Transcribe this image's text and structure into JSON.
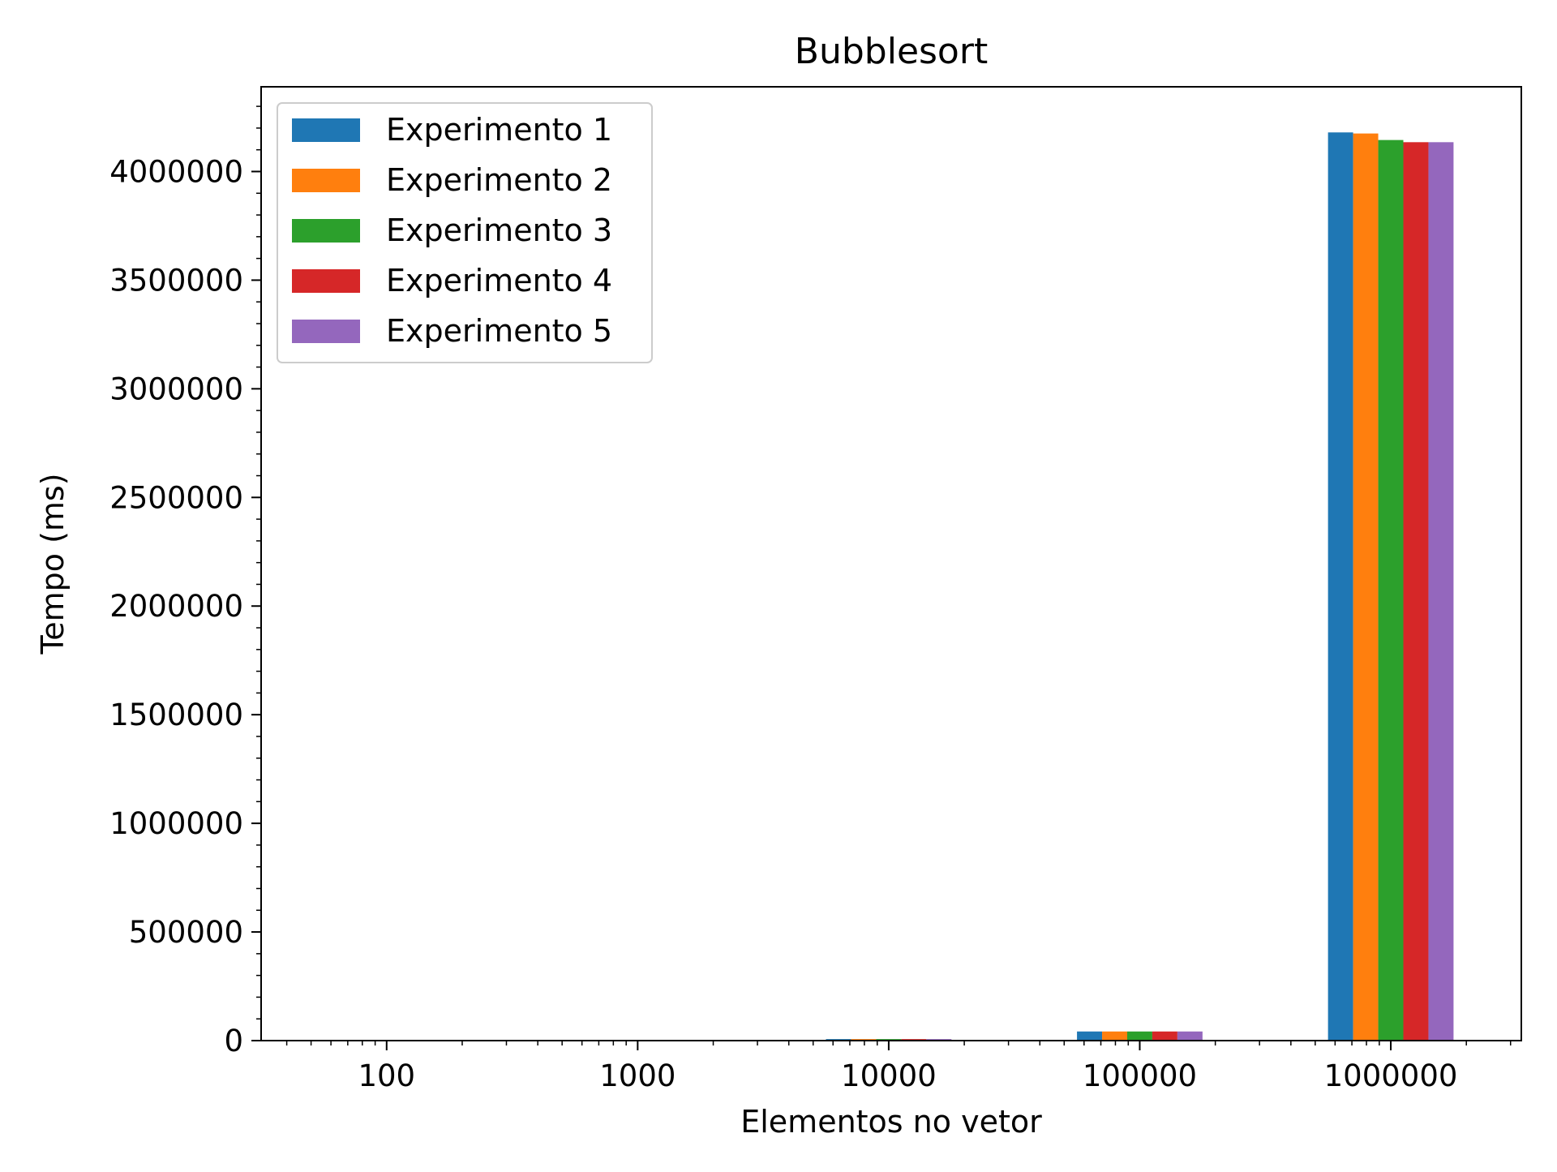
{
  "chart_data": {
    "type": "bar",
    "title": "Bubblesort",
    "xlabel": "Elementos no vetor",
    "ylabel": "Tempo (ms)",
    "x_scale": "log",
    "categories": [
      "100",
      "1000",
      "10000",
      "100000",
      "1000000"
    ],
    "x": [
      100,
      1000,
      10000,
      100000,
      1000000
    ],
    "ylim": [
      0,
      4390000
    ],
    "yticks": [
      0,
      500000,
      1000000,
      1500000,
      2000000,
      2500000,
      3000000,
      3500000,
      4000000
    ],
    "ytick_labels": [
      "0",
      "500000",
      "1000000",
      "1500000",
      "2000000",
      "2500000",
      "3000000",
      "3500000",
      "4000000"
    ],
    "legend_position": "upper left",
    "grid": false,
    "series": [
      {
        "name": "Experimento 1",
        "color": "#1f77b4",
        "values": [
          0,
          70,
          7000,
          42000,
          4180000
        ]
      },
      {
        "name": "Experimento 2",
        "color": "#ff7f0e",
        "values": [
          0,
          70,
          7000,
          42000,
          4175000
        ]
      },
      {
        "name": "Experimento 3",
        "color": "#2ca02c",
        "values": [
          0,
          70,
          7000,
          42000,
          4145000
        ]
      },
      {
        "name": "Experimento 4",
        "color": "#d62728",
        "values": [
          0,
          70,
          7000,
          42000,
          4135000
        ]
      },
      {
        "name": "Experimento 5",
        "color": "#9467bd",
        "values": [
          0,
          70,
          7000,
          42000,
          4135000
        ]
      }
    ]
  }
}
